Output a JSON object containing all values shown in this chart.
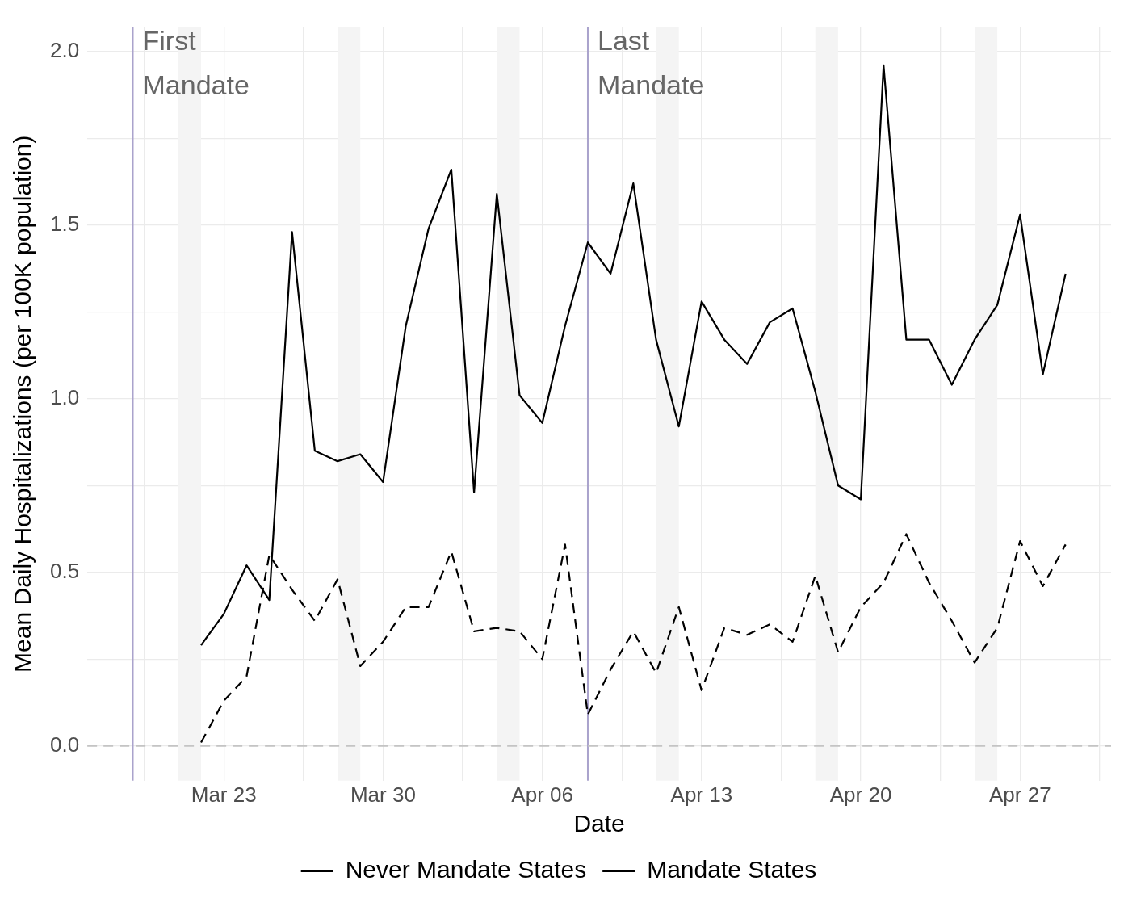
{
  "chart_data": {
    "type": "line",
    "xlabel": "Date",
    "ylabel": "Mean Daily Hospitalizations (per 100K population)",
    "x": [
      "--03-22",
      "--03-23",
      "--03-24",
      "--03-25",
      "--03-26",
      "--03-27",
      "--03-28",
      "--03-29",
      "--03-30",
      "--03-31",
      "--04-01",
      "--04-02",
      "--04-03",
      "--04-04",
      "--04-05",
      "--04-06",
      "--04-07",
      "--04-08",
      "--04-09",
      "--04-10",
      "--04-11",
      "--04-12",
      "--04-13",
      "--04-14",
      "--04-15",
      "--04-16",
      "--04-17",
      "--04-18",
      "--04-19",
      "--04-20",
      "--04-21",
      "--04-22",
      "--04-23",
      "--04-24",
      "--04-25",
      "--04-26",
      "--04-27",
      "--04-28",
      "--04-29"
    ],
    "series": [
      {
        "name": "Never Mandate States",
        "color": "#000000",
        "line_style": "dashed",
        "values": [
          0.01,
          0.13,
          0.2,
          0.55,
          0.45,
          0.36,
          0.48,
          0.23,
          0.3,
          0.4,
          0.4,
          0.56,
          0.33,
          0.34,
          0.33,
          0.25,
          0.58,
          0.09,
          0.22,
          0.33,
          0.21,
          0.4,
          0.16,
          0.34,
          0.32,
          0.35,
          0.3,
          0.49,
          0.27,
          0.4,
          0.47,
          0.61,
          0.47,
          0.36,
          0.24,
          0.34,
          0.59,
          0.46,
          0.58
        ]
      },
      {
        "name": "Mandate States",
        "color": "#000000",
        "line_style": "solid",
        "values": [
          0.29,
          0.38,
          0.52,
          0.42,
          1.48,
          0.85,
          0.82,
          0.84,
          0.76,
          1.21,
          1.49,
          1.66,
          0.73,
          1.59,
          1.01,
          0.93,
          1.21,
          1.45,
          1.36,
          1.62,
          1.17,
          0.92,
          1.28,
          1.17,
          1.1,
          1.22,
          1.26,
          1.02,
          0.75,
          0.71,
          1.96,
          1.17,
          1.17,
          1.04,
          1.17,
          1.27,
          1.53,
          1.07,
          1.36
        ]
      }
    ],
    "xlim": [
      "--03-17",
      "--05-01"
    ],
    "xticks": [
      {
        "value": "--03-19T12:00",
        "label": null
      },
      {
        "value": "--03-23",
        "label": "Mar 23"
      },
      {
        "value": "--03-26T12:00",
        "label": null
      },
      {
        "value": "--03-30",
        "label": "Mar 30"
      },
      {
        "value": "--04-02T12:00",
        "label": null
      },
      {
        "value": "--04-06",
        "label": "Apr 06"
      },
      {
        "value": "--04-09T12:00",
        "label": null
      },
      {
        "value": "--04-13",
        "label": "Apr 13"
      },
      {
        "value": "--04-16T12:00",
        "label": null
      },
      {
        "value": "--04-20",
        "label": "Apr 20"
      },
      {
        "value": "--04-23T12:00",
        "label": null
      },
      {
        "value": "--04-27",
        "label": "Apr 27"
      },
      {
        "value": "--04-30T12:00",
        "label": null
      }
    ],
    "ylim": [
      -0.1,
      2.07
    ],
    "yticks": [
      {
        "value": 0,
        "label": "0.0"
      },
      {
        "value": 0.25,
        "label": null
      },
      0.5,
      {
        "value": 0.75,
        "label": null
      },
      {
        "value": 1,
        "label": "1.0"
      },
      {
        "value": 1.25,
        "label": null
      },
      1.5,
      {
        "value": 1.75,
        "label": null
      },
      {
        "value": 2,
        "label": "2.0"
      }
    ],
    "grid": true,
    "legend": "bottom",
    "marker": "none",
    "ref_lines": [
      {
        "axis": "x",
        "value": "--03-19",
        "label": "First Mandate",
        "color": "#aaa3cc"
      },
      {
        "axis": "x",
        "value": "--04-08",
        "label": "Last Mandate",
        "color": "#aaa3cc"
      },
      {
        "axis": "y",
        "value": 0,
        "color": "#c4c4c4",
        "line_style": "dashed"
      }
    ],
    "bands": [
      {
        "axis": "x",
        "from": "--03-21",
        "to": "--03-22",
        "color": "#f4f4f4"
      },
      {
        "axis": "x",
        "from": "--03-28",
        "to": "--03-29",
        "color": "#f4f4f4"
      },
      {
        "axis": "x",
        "from": "--04-04",
        "to": "--04-05",
        "color": "#f4f4f4"
      },
      {
        "axis": "x",
        "from": "--04-11",
        "to": "--04-12",
        "color": "#f4f4f4"
      },
      {
        "axis": "x",
        "from": "--04-18",
        "to": "--04-19",
        "color": "#f4f4f4"
      },
      {
        "axis": "x",
        "from": "--04-25",
        "to": "--04-26",
        "color": "#f4f4f4"
      }
    ]
  }
}
